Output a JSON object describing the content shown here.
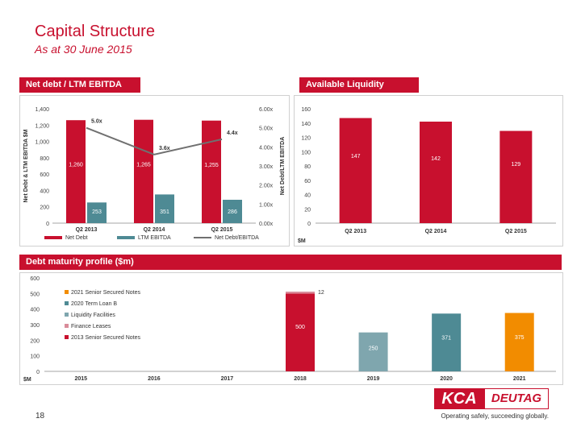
{
  "header": {
    "title": "Capital Structure",
    "subtitle": "As at 30 June 2015"
  },
  "banners": {
    "leverage": "Net debt / LTM EBITDA",
    "liquidity": "Available Liquidity",
    "maturity": "Debt maturity profile ($m)"
  },
  "colors": {
    "brand_red": "#c8102e",
    "teal": "#4e8a94",
    "grey_line": "#707070",
    "orange": "#f28c00"
  },
  "chart_data": [
    {
      "type": "bar",
      "name": "leverage",
      "categories": [
        "Q2 2013",
        "Q2 2014",
        "Q2 2015"
      ],
      "series": [
        {
          "name": "Net Debt",
          "values": [
            1260,
            1265,
            1255
          ],
          "labels": [
            "1,260",
            "1,265",
            "1,255"
          ],
          "color": "#c8102e"
        },
        {
          "name": "LTM EBITDA",
          "values": [
            253,
            351,
            286
          ],
          "labels": [
            "253",
            "351",
            "286"
          ],
          "color": "#4e8a94"
        }
      ],
      "line": {
        "name": "Net Debt/EBITDA",
        "values": [
          5.0,
          3.6,
          4.4
        ],
        "labels": [
          "5.0x",
          "3.6x",
          "4.4x"
        ],
        "color": "#707070"
      },
      "ylabel": "Net Debt & LTM EBITDA $M",
      "y2label": "Net Debt/LTM EBITDA",
      "ylim": [
        0,
        1400
      ],
      "yticks": [
        "0",
        "200",
        "400",
        "600",
        "800",
        "1,000",
        "1,200",
        "1,400"
      ],
      "y2lim": [
        0,
        6
      ],
      "y2ticks": [
        "0.00x",
        "1.00x",
        "2.00x",
        "3.00x",
        "4.00x",
        "5.00x",
        "6.00x"
      ],
      "legend": [
        "Net Debt",
        "LTM EBITDA",
        "Net Debt/EBITDA"
      ]
    },
    {
      "type": "bar",
      "name": "liquidity",
      "categories": [
        "Q2 2013",
        "Q2 2014",
        "Q2 2015"
      ],
      "values": [
        147,
        142,
        129
      ],
      "ylim": [
        0,
        160
      ],
      "yticks": [
        "0",
        "20",
        "40",
        "60",
        "80",
        "100",
        "120",
        "140",
        "160"
      ],
      "unit_label": "$M",
      "color": "#c8102e"
    },
    {
      "type": "bar",
      "name": "maturity",
      "categories": [
        "2015",
        "2016",
        "2017",
        "2018",
        "2019",
        "2020",
        "2021"
      ],
      "stacks": [
        {
          "category": "2018",
          "segments": [
            {
              "series": "2013 Senior Secured Notes",
              "value": 500,
              "label": "500"
            },
            {
              "series": "Finance Leases",
              "value": 12,
              "label": "12"
            }
          ]
        },
        {
          "category": "2019",
          "segments": [
            {
              "series": "Liquidity Facilities",
              "value": 250,
              "label": "250"
            }
          ]
        },
        {
          "category": "2020",
          "segments": [
            {
              "series": "2020 Term Loan B",
              "value": 371,
              "label": "371"
            }
          ]
        },
        {
          "category": "2021",
          "segments": [
            {
              "series": "2021 Senior Secured Notes",
              "value": 375,
              "label": "375"
            }
          ]
        }
      ],
      "legend": [
        {
          "name": "2021 Senior Secured Notes",
          "color": "#f28c00"
        },
        {
          "name": "2020 Term Loan B",
          "color": "#4e8a94"
        },
        {
          "name": "Liquidity Facilities",
          "color": "#7fa6ae"
        },
        {
          "name": "Finance Leases",
          "color": "#d98c9a"
        },
        {
          "name": "2013 Senior Secured Notes",
          "color": "#c8102e"
        }
      ],
      "ylim": [
        0,
        600
      ],
      "yticks": [
        "0",
        "100",
        "200",
        "300",
        "400",
        "500",
        "600"
      ],
      "unit_label": "$M"
    }
  ],
  "footer": {
    "page_number": "18",
    "logo_left": "KCA",
    "logo_right": "DEUTAG",
    "tagline": "Operating safely, succeeding globally."
  }
}
